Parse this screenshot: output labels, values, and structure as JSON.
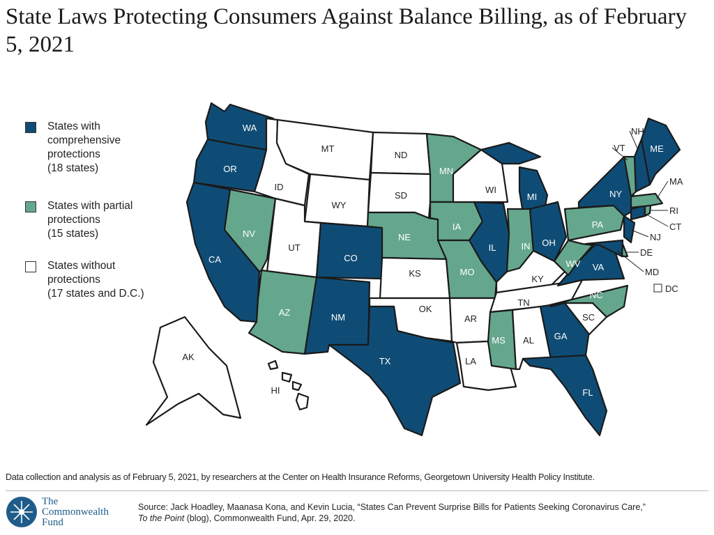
{
  "title": "State Laws Protecting Consumers Against Balance Billing, as of February 5, 2021",
  "colors": {
    "comprehensive": "#0f4c75",
    "partial": "#65a78d",
    "none": "#ffffff",
    "border": "#1a1a1a"
  },
  "legend": [
    {
      "status": "comprehensive",
      "label": "States with comprehensive protections",
      "count": "(18 states)"
    },
    {
      "status": "partial",
      "label": "States with partial protections",
      "count": "(15 states)"
    },
    {
      "status": "none",
      "label": "States without protections",
      "count": "(17 states and D.C.)"
    }
  ],
  "states": {
    "WA": "comprehensive",
    "OR": "comprehensive",
    "CA": "comprehensive",
    "CO": "comprehensive",
    "NM": "comprehensive",
    "TX": "comprehensive",
    "IL": "comprehensive",
    "MI": "comprehensive",
    "OH": "comprehensive",
    "GA": "comprehensive",
    "FL": "comprehensive",
    "VA": "comprehensive",
    "MD": "comprehensive",
    "NJ": "comprehensive",
    "NY": "comprehensive",
    "CT": "comprehensive",
    "NH": "comprehensive",
    "ME": "comprehensive",
    "NV": "partial",
    "AZ": "partial",
    "NE": "partial",
    "MN": "partial",
    "IA": "partial",
    "MO": "partial",
    "MS": "partial",
    "IN": "partial",
    "WV": "partial",
    "NC": "partial",
    "PA": "partial",
    "DE": "partial",
    "VT": "partial",
    "MA": "partial",
    "RI": "partial",
    "AK": "none",
    "HI": "none",
    "ID": "none",
    "MT": "none",
    "WY": "none",
    "UT": "none",
    "ND": "none",
    "SD": "none",
    "KS": "none",
    "OK": "none",
    "AR": "none",
    "LA": "none",
    "WI": "none",
    "KY": "none",
    "TN": "none",
    "AL": "none",
    "SC": "none",
    "DC": "none"
  },
  "footnote": "Data collection and analysis as of February 5, 2021, by researchers at the Center on Health Insurance Reforms, Georgetown University Health Policy Institute.",
  "logo": {
    "line1": "The",
    "line2": "Commonwealth",
    "line3": "Fund"
  },
  "source": {
    "line1": "Source: Jack Hoadley, Maanasa Kona, and Kevin Lucia, “States Can Prevent Surprise Bills for Patients Seeking Coronavirus Care,”",
    "italic": "To the Point",
    "line2": " (blog), Commonwealth Fund, Apr. 29, 2020."
  }
}
